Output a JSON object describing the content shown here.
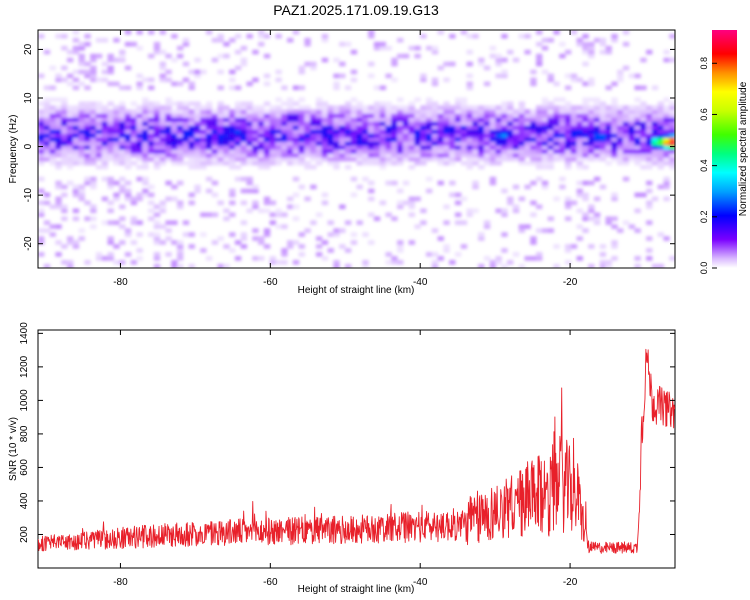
{
  "title": "PAZ1.2025.171.09.19.G13",
  "chart_data": [
    {
      "type": "heatmap",
      "xlabel": "Height of straight line (km)",
      "ylabel": "Frequency (Hz)",
      "xlim": [
        -91,
        -6
      ],
      "ylim": [
        -25,
        24
      ],
      "xticks": [
        -80,
        -60,
        -40,
        -20
      ],
      "yticks": [
        20,
        10,
        0,
        -10,
        -20
      ],
      "colorbar": {
        "label": "Normalized spectral amplitude",
        "range": [
          0,
          0.93
        ],
        "ticks": [
          0.0,
          0.2,
          0.4,
          0.6,
          0.8
        ],
        "colormap": "rainbow"
      },
      "description_points": {
        "ridge_center_hz": 2.5,
        "strong_blobs": [
          {
            "x": -73,
            "y": 1,
            "v": 0.22
          },
          {
            "x": -64.5,
            "y": 3,
            "v": 0.26
          },
          {
            "x": -57,
            "y": 6,
            "v": 0.2
          },
          {
            "x": -48,
            "y": 1,
            "v": 0.22
          },
          {
            "x": -33,
            "y": 3,
            "v": 0.2
          },
          {
            "x": -29,
            "y": 2.5,
            "v": 0.3
          },
          {
            "x": -19,
            "y": 3,
            "v": 0.25
          },
          {
            "x": -16,
            "y": 2,
            "v": 0.3
          },
          {
            "x": -8,
            "y": 1,
            "v": 0.55
          },
          {
            "x": -6.5,
            "y": 1,
            "v": 0.93
          }
        ]
      }
    },
    {
      "type": "line",
      "xlabel": "Height of straight line (km)",
      "ylabel": "SNR (10 * v/v)",
      "xlim": [
        -91,
        -6
      ],
      "ylim": [
        0,
        1420
      ],
      "xticks": [
        -80,
        -60,
        -40,
        -20
      ],
      "yticks": [
        200,
        400,
        600,
        800,
        1000,
        1200,
        1400
      ],
      "series": [
        {
          "color": "#e8202a",
          "envelope": [
            {
              "x": -91,
              "base": 130,
              "amp": 90
            },
            {
              "x": -80,
              "base": 160,
              "amp": 130
            },
            {
              "x": -66,
              "base": 190,
              "amp": 160
            },
            {
              "x": -50,
              "base": 200,
              "amp": 170
            },
            {
              "x": -34,
              "base": 230,
              "amp": 200
            },
            {
              "x": -33.5,
              "base": 230,
              "amp": 320
            },
            {
              "x": -29,
              "base": 300,
              "amp": 350
            },
            {
              "x": -24,
              "base": 350,
              "amp": 500
            },
            {
              "x": -21,
              "base": 420,
              "amp": 600
            },
            {
              "x": -19,
              "base": 350,
              "amp": 450
            },
            {
              "x": -17.5,
              "base": 110,
              "amp": 70
            },
            {
              "x": -11,
              "base": 110,
              "amp": 70
            },
            {
              "x": -10.5,
              "base": 700,
              "amp": 400
            },
            {
              "x": -9.8,
              "base": 1250,
              "amp": 200
            },
            {
              "x": -9,
              "base": 950,
              "amp": 250
            },
            {
              "x": -6,
              "base": 900,
              "amp": 200
            }
          ]
        }
      ]
    }
  ]
}
